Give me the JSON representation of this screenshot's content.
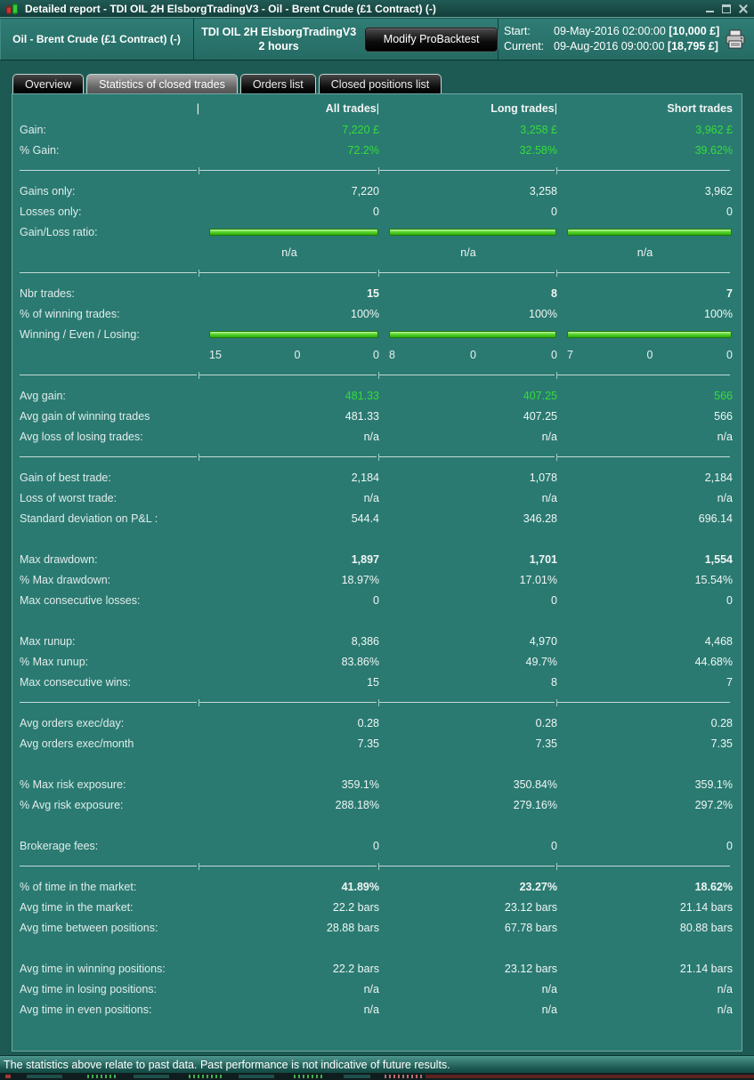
{
  "titlebar": {
    "title": "Detailed report - TDI OIL 2H ElsborgTradingV3 - Oil - Brent Crude (£1 Contract) (-)"
  },
  "header": {
    "instrument": "Oil - Brent Crude (£1 Contract) (-)",
    "strategy_name": "TDI OIL 2H ElsborgTradingV3",
    "timeframe": "2 hours",
    "modify_button": "Modify ProBacktest",
    "start_label": "Start:",
    "start_value": "09-May-2016 02:00:00",
    "start_amount": "[10,000 £]",
    "current_label": "Current:",
    "current_value": "09-Aug-2016 09:00:00",
    "current_amount": "[18,795 £]"
  },
  "tabs": {
    "items": [
      {
        "label": "Overview",
        "active": false
      },
      {
        "label": "Statistics of closed trades",
        "active": true
      },
      {
        "label": "Orders list",
        "active": false
      },
      {
        "label": "Closed positions list",
        "active": false
      }
    ]
  },
  "table": {
    "columns": {
      "label_cursor": "|",
      "all": "All trades",
      "all_cursor": "|",
      "long": "Long trades",
      "long_cursor": "|",
      "short": "Short trades"
    },
    "rows": [
      {
        "t": "r",
        "label": "Gain:",
        "v": [
          "7,220 £",
          "3,258 £",
          "3,962 £"
        ],
        "green": true,
        "boldFirst": true
      },
      {
        "t": "r",
        "label": "% Gain:",
        "v": [
          "72.2%",
          "32.58%",
          "39.62%"
        ],
        "green": true,
        "boldFirst": true
      },
      {
        "t": "sep"
      },
      {
        "t": "r",
        "label": "Gains only:",
        "v": [
          "7,220",
          "3,258",
          "3,962"
        ]
      },
      {
        "t": "r",
        "label": "Losses only:",
        "v": [
          "0",
          "0",
          "0"
        ]
      },
      {
        "t": "bars",
        "label": "Gain/Loss ratio:"
      },
      {
        "t": "center",
        "label": "",
        "v": [
          "n/a",
          "n/a",
          "n/a"
        ]
      },
      {
        "t": "sep"
      },
      {
        "t": "r",
        "label": "Nbr trades:",
        "v": [
          "15",
          "8",
          "7"
        ],
        "bold": true
      },
      {
        "t": "r",
        "label": "% of winning trades:",
        "v": [
          "100%",
          "100%",
          "100%"
        ]
      },
      {
        "t": "bars",
        "label": "Winning / Even / Losing:"
      },
      {
        "t": "triple",
        "label": "",
        "v": [
          [
            "15",
            "0",
            "0"
          ],
          [
            "8",
            "0",
            "0"
          ],
          [
            "7",
            "0",
            "0"
          ]
        ]
      },
      {
        "t": "sep"
      },
      {
        "t": "r",
        "label": "Avg gain:",
        "v": [
          "481.33",
          "407.25",
          "566"
        ],
        "green": true,
        "boldFirst": true
      },
      {
        "t": "r",
        "label": "Avg gain of winning trades",
        "v": [
          "481.33",
          "407.25",
          "566"
        ]
      },
      {
        "t": "r",
        "label": "Avg loss of losing trades:",
        "v": [
          "n/a",
          "n/a",
          "n/a"
        ]
      },
      {
        "t": "sep"
      },
      {
        "t": "r",
        "label": "Gain of best trade:",
        "v": [
          "2,184",
          "1,078",
          "2,184"
        ]
      },
      {
        "t": "r",
        "label": "Loss of worst trade:",
        "v": [
          "n/a",
          "n/a",
          "n/a"
        ]
      },
      {
        "t": "r",
        "label": "Standard deviation on P&L :",
        "v": [
          "544.4",
          "346.28",
          "696.14"
        ]
      },
      {
        "t": "gap"
      },
      {
        "t": "r",
        "label": "Max drawdown:",
        "v": [
          "1,897",
          "1,701",
          "1,554"
        ],
        "bold": true
      },
      {
        "t": "r",
        "label": "% Max drawdown:",
        "v": [
          "18.97%",
          "17.01%",
          "15.54%"
        ]
      },
      {
        "t": "r",
        "label": "Max consecutive losses:",
        "v": [
          "0",
          "0",
          "0"
        ]
      },
      {
        "t": "gap"
      },
      {
        "t": "r",
        "label": "Max runup:",
        "v": [
          "8,386",
          "4,970",
          "4,468"
        ]
      },
      {
        "t": "r",
        "label": "% Max runup:",
        "v": [
          "83.86%",
          "49.7%",
          "44.68%"
        ]
      },
      {
        "t": "r",
        "label": "Max consecutive wins:",
        "v": [
          "15",
          "8",
          "7"
        ]
      },
      {
        "t": "sep"
      },
      {
        "t": "r",
        "label": "Avg orders exec/day:",
        "v": [
          "0.28",
          "0.28",
          "0.28"
        ]
      },
      {
        "t": "r",
        "label": "Avg orders exec/month",
        "v": [
          "7.35",
          "7.35",
          "7.35"
        ]
      },
      {
        "t": "gap"
      },
      {
        "t": "r",
        "label": "% Max risk exposure:",
        "v": [
          "359.1%",
          "350.84%",
          "359.1%"
        ]
      },
      {
        "t": "r",
        "label": "% Avg risk exposure:",
        "v": [
          "288.18%",
          "279.16%",
          "297.2%"
        ]
      },
      {
        "t": "gap"
      },
      {
        "t": "r",
        "label": "Brokerage fees:",
        "v": [
          "0",
          "0",
          "0"
        ]
      },
      {
        "t": "sep"
      },
      {
        "t": "r",
        "label": "% of time in the market:",
        "v": [
          "41.89%",
          "23.27%",
          "18.62%"
        ],
        "bold": true
      },
      {
        "t": "r",
        "label": "Avg time in the market:",
        "v": [
          "22.2 bars",
          "23.12 bars",
          "21.14 bars"
        ]
      },
      {
        "t": "r",
        "label": "Avg time between positions:",
        "v": [
          "28.88 bars",
          "67.78 bars",
          "80.88 bars"
        ]
      },
      {
        "t": "gap"
      },
      {
        "t": "r",
        "label": "Avg time in winning positions:",
        "v": [
          "22.2 bars",
          "23.12 bars",
          "21.14 bars"
        ]
      },
      {
        "t": "r",
        "label": "Avg time in losing positions:",
        "v": [
          "n/a",
          "n/a",
          "n/a"
        ]
      },
      {
        "t": "r",
        "label": "Avg time in even positions:",
        "v": [
          "n/a",
          "n/a",
          "n/a"
        ]
      }
    ]
  },
  "footer": {
    "disclaimer": "The statistics above relate to past data. Past performance is not indicative of future results."
  },
  "colors": {
    "value_green": "#35dc38",
    "bar_green": "#58d52e",
    "panel_teal": "#2a7a72",
    "chrome_teal": "#1d5a54"
  }
}
